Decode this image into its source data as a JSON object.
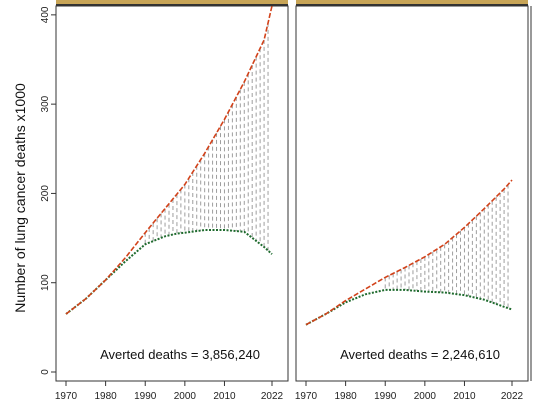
{
  "chart_data": {
    "type": "line",
    "ylabel": "Number of lung cancer deaths x1000",
    "ylim": [
      0,
      420
    ],
    "yticks": [
      0,
      100,
      200,
      300,
      400
    ],
    "xticks": [
      1970,
      1980,
      1990,
      2000,
      2010,
      2022
    ],
    "xlim": [
      1969,
      2023
    ],
    "colors": {
      "expected": "#d2421a",
      "observed": "#1f6b2e",
      "gap": "#9e9e9e",
      "panel_strip": "#c8a557"
    },
    "panels": [
      {
        "annotation": "Averted deaths = 3,856,240",
        "series": [
          {
            "x": [
              1970,
              1975,
              1980,
              1985,
              1990,
              1995,
              2000,
              2005,
              2010,
              2015,
              2020,
              2022
            ],
            "values": [
              65,
              82,
              103,
              128,
              156,
              183,
              210,
              245,
              283,
              325,
              372,
              410
            ]
          },
          {
            "x": [
              1970,
              1975,
              1980,
              1985,
              1990,
              1995,
              1998,
              2000,
              2005,
              2010,
              2015,
              2020,
              2022
            ],
            "values": [
              65,
              82,
              103,
              124,
              143,
              152,
              155,
              156,
              159,
              159,
              157,
              140,
              132
            ]
          }
        ]
      },
      {
        "annotation": "Averted deaths = 2,246,610",
        "series": [
          {
            "x": [
              1970,
              1975,
              1980,
              1985,
              1990,
              1995,
              2000,
              2005,
              2010,
              2015,
              2020,
              2022
            ],
            "values": [
              53,
              65,
              80,
              93,
              106,
              117,
              129,
              143,
              162,
              183,
              205,
              215
            ]
          },
          {
            "x": [
              1970,
              1975,
              1980,
              1985,
              1990,
              1995,
              2000,
              2005,
              2010,
              2015,
              2020,
              2022
            ],
            "values": [
              53,
              65,
              78,
              87,
              92,
              92,
              90,
              89,
              86,
              81,
              73,
              70
            ]
          }
        ]
      }
    ]
  }
}
